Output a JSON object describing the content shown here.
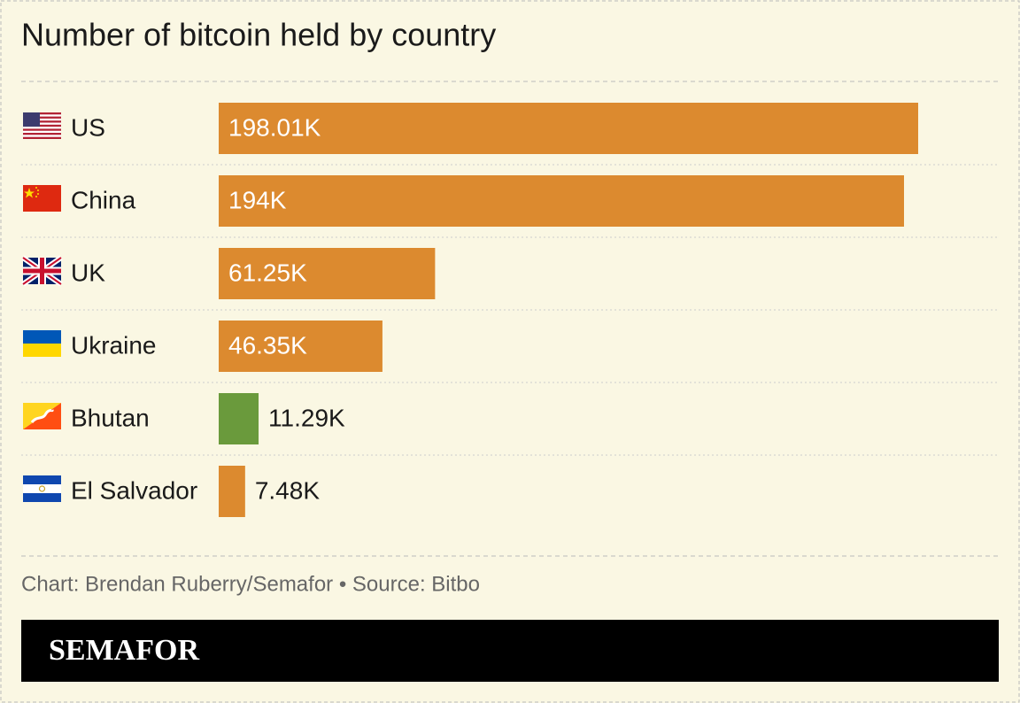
{
  "chart_data": {
    "type": "bar",
    "orientation": "horizontal",
    "title": "Number of bitcoin held by country",
    "categories": [
      "US",
      "China",
      "UK",
      "Ukraine",
      "Bhutan",
      "El Salvador"
    ],
    "values": [
      198.01,
      194,
      61.25,
      46.35,
      11.29,
      7.48
    ],
    "value_labels": [
      "198.01K",
      "194K",
      "61.25K",
      "46.35K",
      "11.29K",
      "7.48K"
    ],
    "colors": [
      "#dc8a2f",
      "#dc8a2f",
      "#dc8a2f",
      "#dc8a2f",
      "#6a9a3c",
      "#dc8a2f"
    ],
    "source": "Chart: Brendan Ruberry/Semafor • Source: Bitbo",
    "logo": "SEMAFOR"
  }
}
